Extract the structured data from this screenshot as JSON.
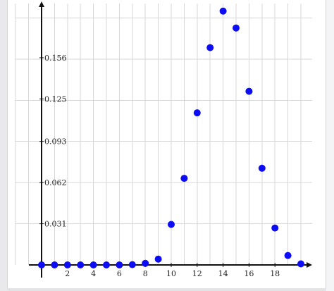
{
  "chart_data": {
    "type": "scatter",
    "title": "",
    "xlabel": "",
    "ylabel": "",
    "x": [
      0,
      1,
      2,
      3,
      4,
      5,
      6,
      7,
      8,
      9,
      10,
      11,
      12,
      13,
      14,
      15,
      16,
      17,
      18,
      19,
      20
    ],
    "series": [
      {
        "values": [
          0,
          0,
          0,
          0,
          0,
          0,
          0,
          0.0002,
          0.0012,
          0.0044,
          0.0305,
          0.0652,
          0.1145,
          0.1636,
          0.1911,
          0.1784,
          0.1307,
          0.0728,
          0.0278,
          0.0071,
          0.0008
        ]
      }
    ],
    "x_ticks": [
      2,
      4,
      6,
      8,
      10,
      12,
      14,
      16,
      18
    ],
    "y_ticks": [
      0.031,
      0.062,
      0.093,
      0.125,
      0.156
    ],
    "x_tick_labels": [
      "2",
      "4",
      "6",
      "8",
      "10",
      "12",
      "14",
      "16",
      "18"
    ],
    "y_tick_labels": [
      "0.031",
      "0.062",
      "0.093",
      "0.125",
      "0.156"
    ],
    "xlim": [
      -1,
      21
    ],
    "ylim": [
      0,
      0.2
    ],
    "grid": true,
    "legend": "none",
    "marker_color": "#0c0cf5",
    "axis_color": "#111111",
    "grid_color": "#d7d7d7"
  }
}
